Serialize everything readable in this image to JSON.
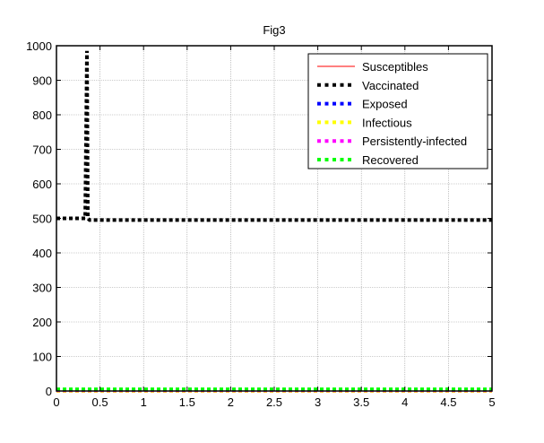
{
  "chart_data": {
    "type": "line",
    "title": "Fig3",
    "xlabel": "",
    "ylabel": "",
    "xlim": [
      0,
      5
    ],
    "ylim": [
      0,
      1000
    ],
    "xticks": [
      "0",
      "0.5",
      "1",
      "1.5",
      "2",
      "2.5",
      "3",
      "3.5",
      "4",
      "4.5",
      "5"
    ],
    "yticks": [
      "0",
      "100",
      "200",
      "300",
      "400",
      "500",
      "600",
      "700",
      "800",
      "900",
      "1000"
    ],
    "grid": true,
    "legend_position": "top-right",
    "series": [
      {
        "name": "Susceptibles",
        "color": "#ff0000",
        "style": "solid",
        "x": [
          0,
          5
        ],
        "y": [
          0,
          0
        ]
      },
      {
        "name": "Vaccinated",
        "color": "#000000",
        "style": "dotted",
        "x": [
          0,
          0.32,
          0.33,
          0.35,
          0.36,
          0.38,
          5
        ],
        "y": [
          500,
          500,
          500,
          985,
          500,
          495,
          495
        ]
      },
      {
        "name": "Exposed",
        "color": "#0000ff",
        "style": "dotted",
        "x": [
          0,
          5
        ],
        "y": [
          0,
          0
        ]
      },
      {
        "name": "Infectious",
        "color": "#ffff00",
        "style": "dotted",
        "x": [
          0,
          5
        ],
        "y": [
          0,
          0
        ]
      },
      {
        "name": "Persistently-infected",
        "color": "#ff00ff",
        "style": "dotted",
        "x": [
          0,
          5
        ],
        "y": [
          2,
          2
        ]
      },
      {
        "name": "Recovered",
        "color": "#00ff00",
        "style": "dotted",
        "x": [
          0,
          5
        ],
        "y": [
          5,
          5
        ]
      }
    ]
  }
}
